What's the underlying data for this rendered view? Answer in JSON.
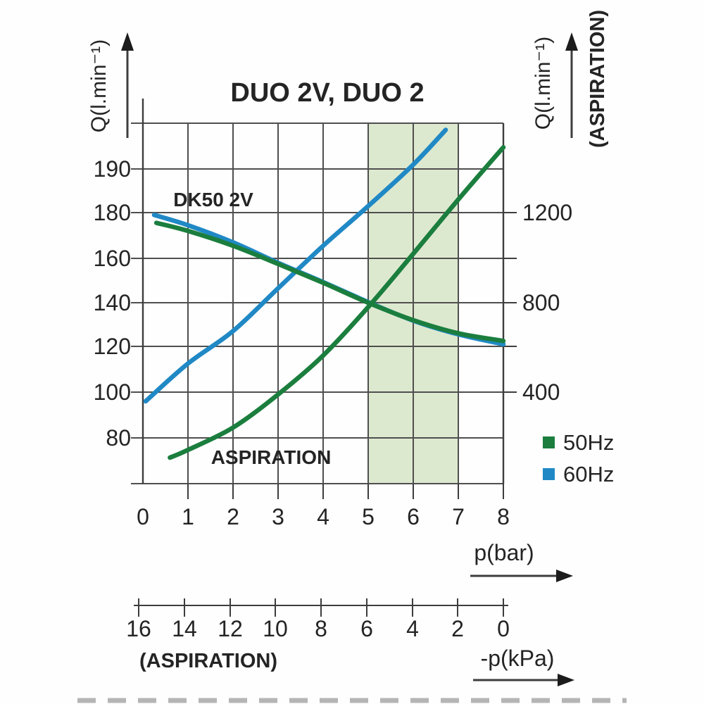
{
  "chart_data": {
    "type": "line",
    "title": "DUO 2V, DUO 2",
    "x_axis": {
      "label": "p(bar)",
      "ticks": [
        "0",
        "1",
        "2",
        "3",
        "4",
        "5",
        "6",
        "7",
        "8"
      ],
      "range": [
        0,
        8
      ]
    },
    "x_axis_secondary": {
      "label": "-p(kPa)",
      "caption": "(ASPIRATION)",
      "ticks": [
        "16",
        "14",
        "12",
        "10",
        "8",
        "6",
        "4",
        "2",
        "0"
      ],
      "note": "inverse scale aligned with p(bar): 0 kPa under 8 bar, 16 kPa under 0 bar"
    },
    "y_axis_left": {
      "label": "Q(l.min⁻¹)",
      "ticks": [
        "80",
        "100",
        "120",
        "140",
        "160",
        "180",
        "190"
      ],
      "note": "gridlines equally spaced; top step 180→190 compressed (non-linear)"
    },
    "y_axis_right": {
      "label": "Q(l.min⁻¹)",
      "sublabel": "(ASPIRATION)",
      "ticks": [
        "400",
        "800",
        "1200"
      ],
      "minor_ticks": [
        600,
        1000
      ],
      "mapping": "right = (left − 100) × 10 + 400"
    },
    "highlight_band": {
      "x_from": 5,
      "x_to": 7,
      "color": "#dde9cf"
    },
    "grid": true,
    "legend_position": "right-bottom",
    "legend": [
      {
        "label": "50Hz",
        "color": "#1b7e3e"
      },
      {
        "label": "60Hz",
        "color": "#2089c5"
      }
    ],
    "annotations": {
      "dk50": "DK50 2V",
      "aspiration": "ASPIRATION"
    },
    "colors": {
      "green": "#1b7e3e",
      "blue": "#2089c5",
      "band": "#dde9cf",
      "grid": "#4f4f4f",
      "text": "#242424"
    },
    "series": [
      {
        "name": "ASPIRATION 60Hz",
        "axis": "right",
        "color": "#2089c5",
        "points": [
          [
            0.06,
            360
          ],
          [
            1,
            525
          ],
          [
            2,
            670
          ],
          [
            3,
            865
          ],
          [
            4,
            1055
          ],
          [
            5,
            1215
          ],
          [
            6,
            1310
          ],
          [
            6.72,
            1390
          ]
        ]
      },
      {
        "name": "DK50 2V 60Hz",
        "axis": "left",
        "color": "#2089c5",
        "points": [
          [
            0.25,
            179
          ],
          [
            1,
            174.5
          ],
          [
            2,
            167
          ],
          [
            3,
            158
          ],
          [
            4,
            149.3
          ],
          [
            5,
            140.3
          ],
          [
            6,
            131.8
          ],
          [
            7,
            125.5
          ],
          [
            8,
            121
          ]
        ]
      },
      {
        "name": "ASPIRATION 50Hz",
        "axis": "right",
        "color": "#1b7e3e",
        "points": [
          [
            0.6,
            110
          ],
          [
            1,
            145
          ],
          [
            2,
            245
          ],
          [
            3,
            390
          ],
          [
            4,
            560
          ],
          [
            5,
            780
          ],
          [
            6,
            1020
          ],
          [
            7,
            1230
          ],
          [
            8,
            1350
          ]
        ]
      },
      {
        "name": "DK50 2V 50Hz",
        "axis": "left",
        "color": "#1b7e3e",
        "points": [
          [
            0.3,
            175.5
          ],
          [
            1,
            172
          ],
          [
            2,
            165.5
          ],
          [
            3,
            157.5
          ],
          [
            4,
            149
          ],
          [
            5,
            140
          ],
          [
            6,
            132
          ],
          [
            7,
            126
          ],
          [
            8,
            122.5
          ]
        ]
      }
    ]
  }
}
